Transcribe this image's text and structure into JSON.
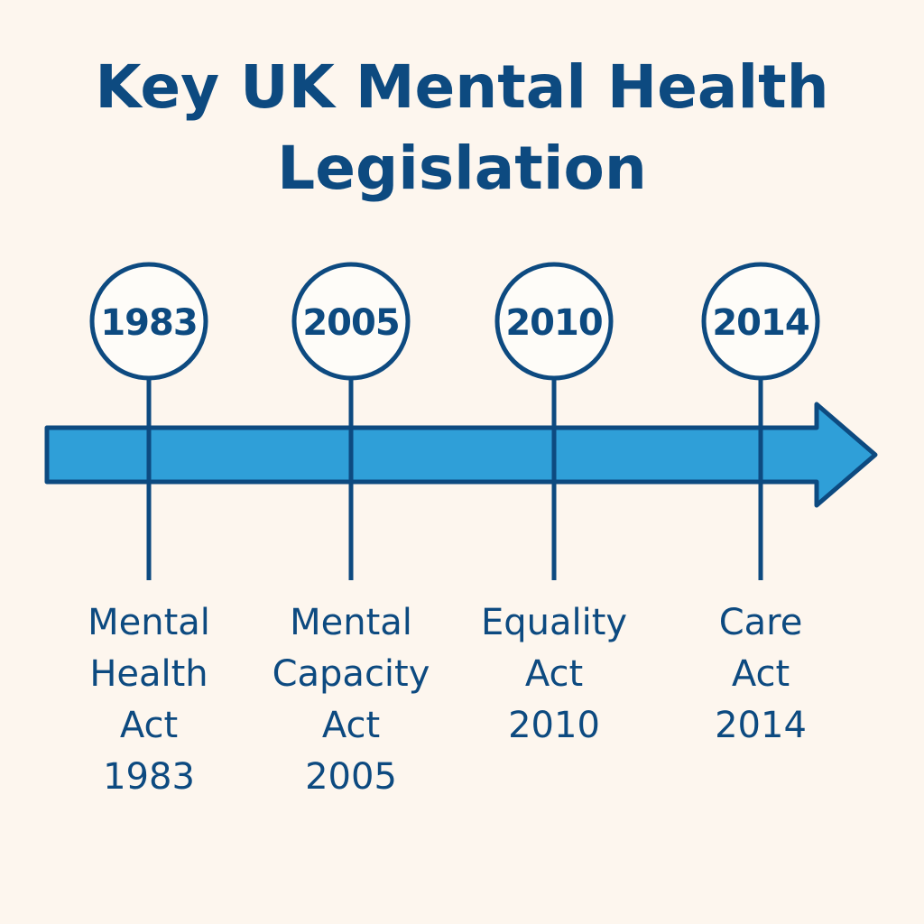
{
  "title_line1": "Key UK Mental Health",
  "title_line2": "Legislation",
  "colors": {
    "background": "#fdf6ee",
    "dark_blue": "#0d4a80",
    "arrow_fill": "#2f9fd8",
    "circle_fill": "#fefcf8"
  },
  "events": [
    {
      "year": "1983",
      "label_lines": [
        "Mental",
        "Health",
        "Act",
        "1983"
      ]
    },
    {
      "year": "2005",
      "label_lines": [
        "Mental",
        "Capacity",
        "Act",
        "2005"
      ]
    },
    {
      "year": "2010",
      "label_lines": [
        "Equality",
        "Act",
        "2010"
      ]
    },
    {
      "year": "2014",
      "label_lines": [
        "Care",
        "Act",
        "2014"
      ]
    }
  ]
}
